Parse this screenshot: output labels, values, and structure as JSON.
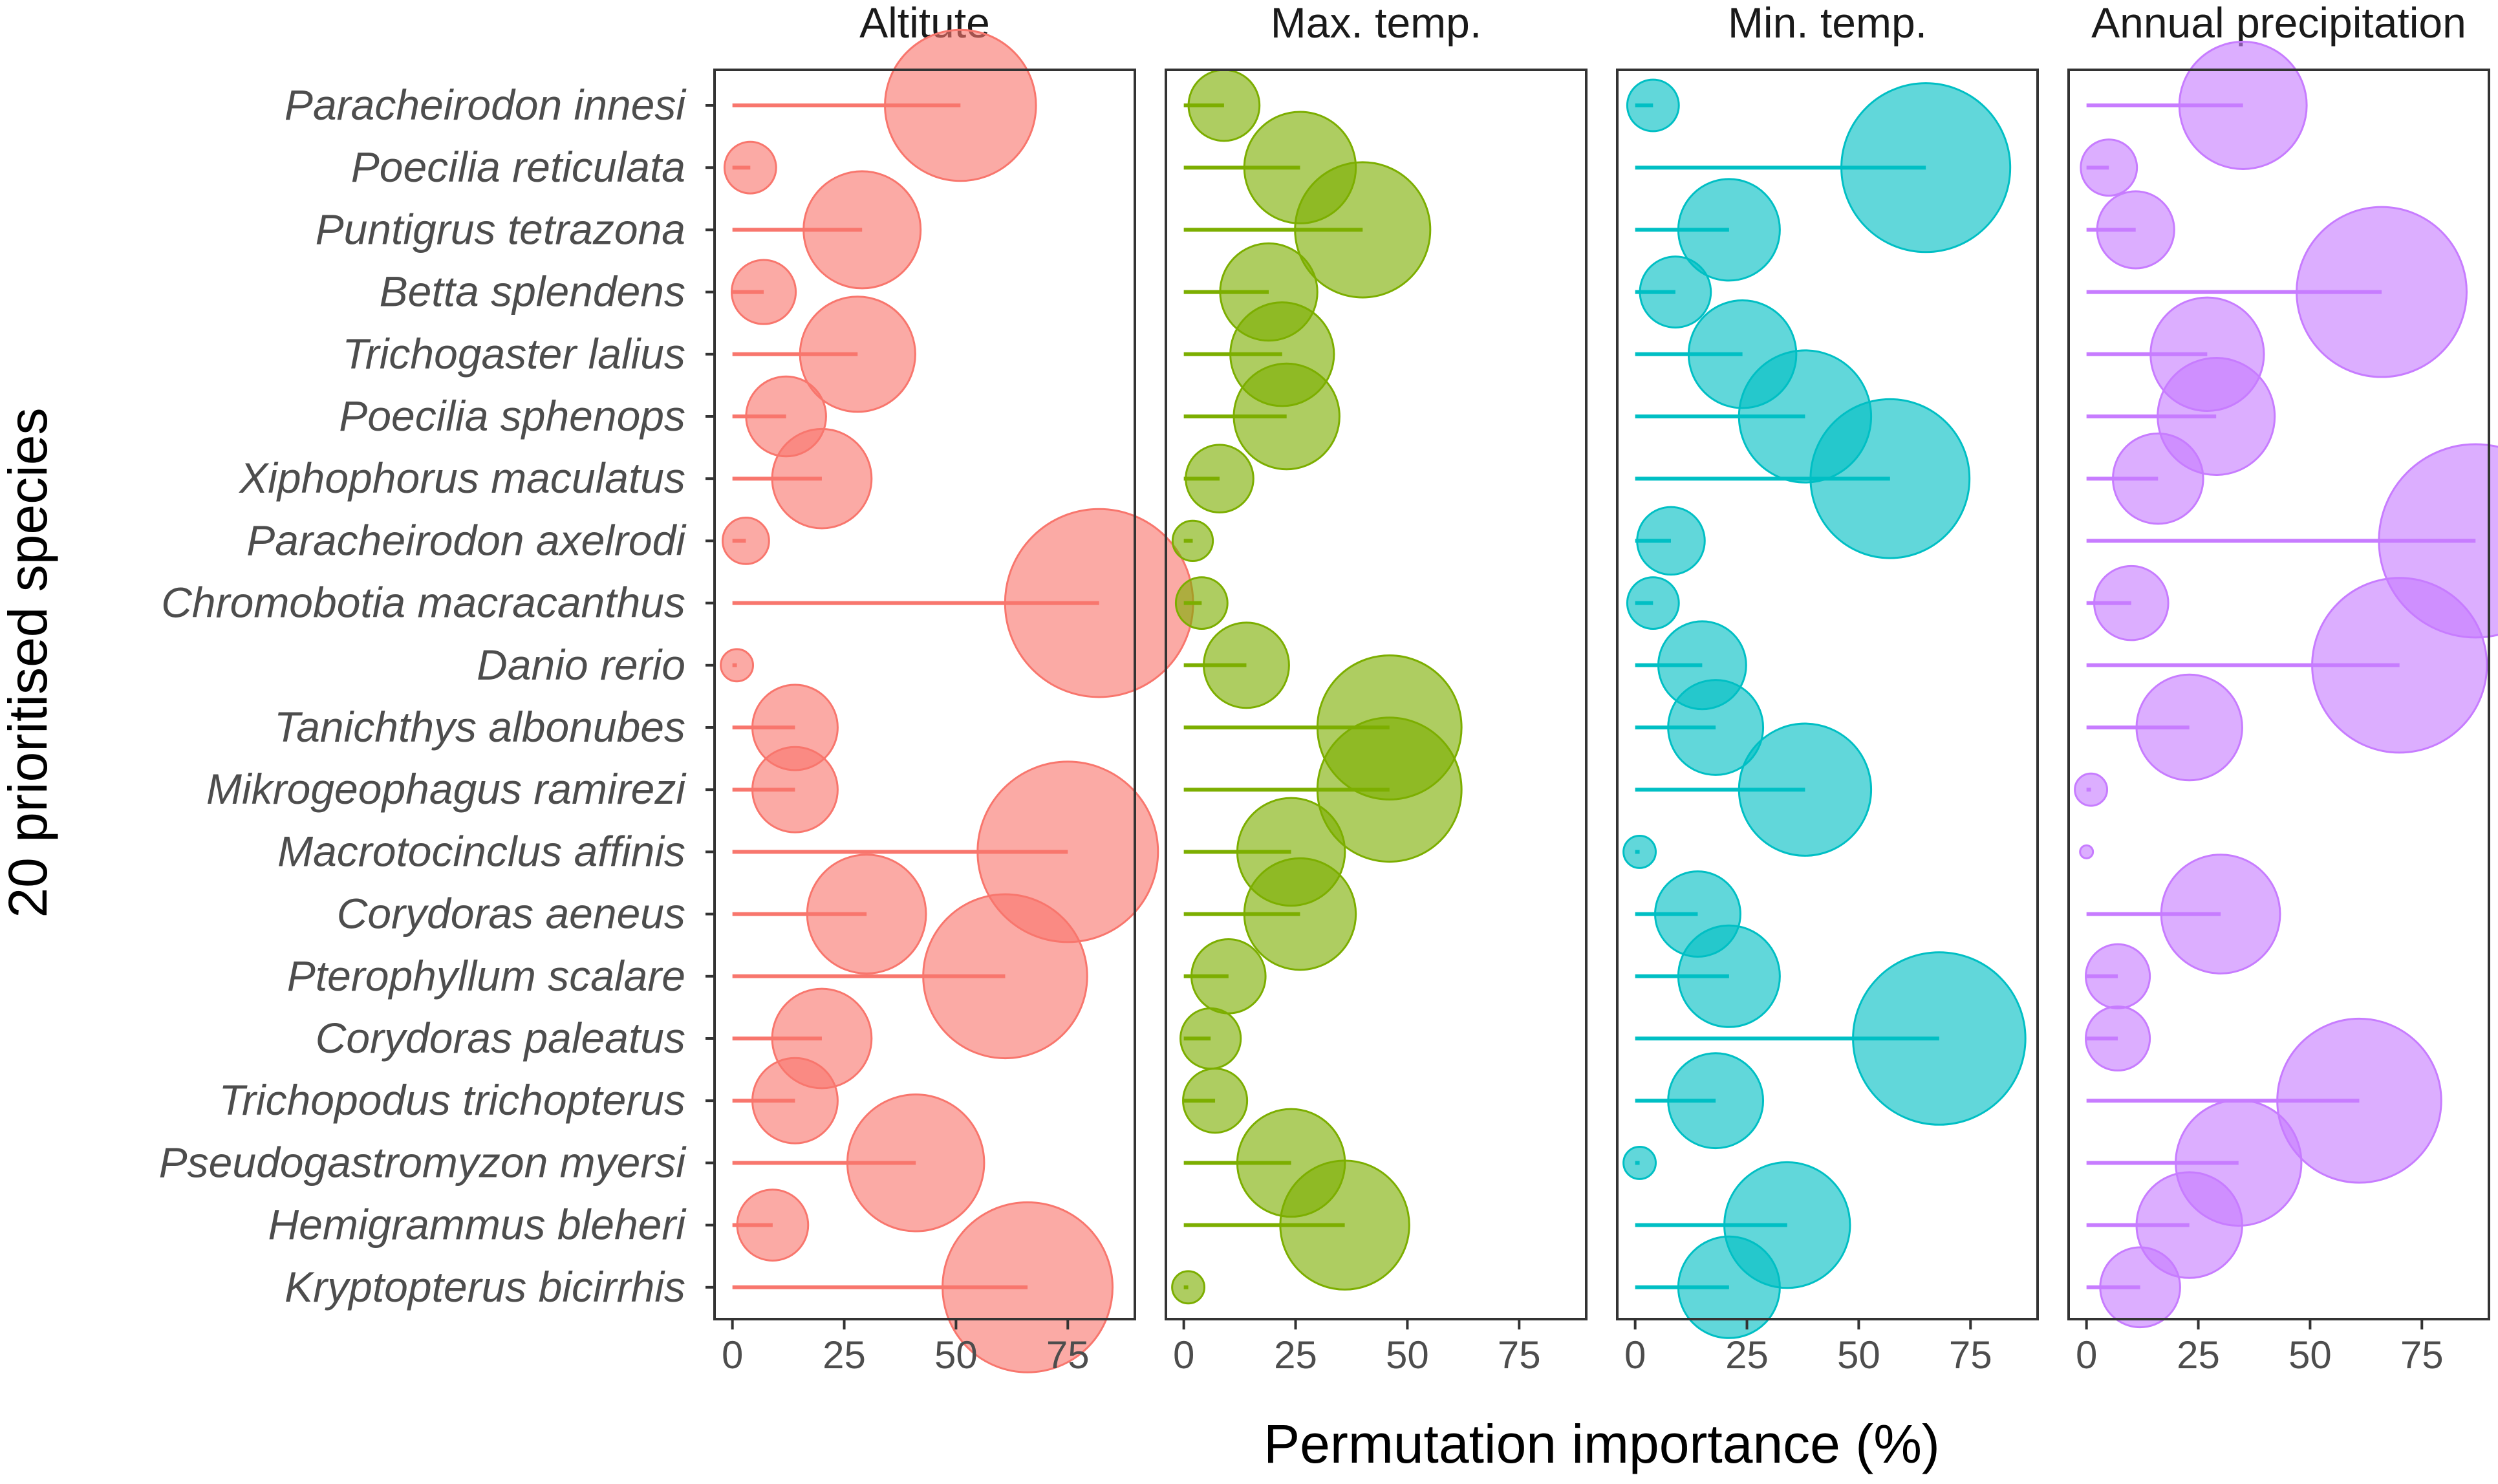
{
  "chart_data": {
    "type": "lollipop",
    "xlabel": "Permutation importance (%)",
    "ylabel": "20 prioritised species",
    "xlim": [
      -4,
      90
    ],
    "xticks": [
      0,
      25,
      50,
      75
    ],
    "xtick_labels": [
      "0",
      "25",
      "50",
      "75"
    ],
    "species": [
      "Paracheirodon innesi",
      "Poecilia reticulata",
      "Puntigrus tetrazona",
      "Betta splendens",
      "Trichogaster lalius",
      "Poecilia sphenops",
      "Xiphophorus maculatus",
      "Paracheirodon axelrodi",
      "Chromobotia macracanthus",
      "Danio rerio",
      "Tanichthys albonubes",
      "Mikrogeophagus ramirezi",
      "Macrotocinclus affinis",
      "Corydoras aeneus",
      "Pterophyllum scalare",
      "Corydoras paleatus",
      "Trichopodus trichopterus",
      "Pseudogastromyzon myersi",
      "Hemigrammus bleheri",
      "Kryptopterus bicirrhis"
    ],
    "series": [
      {
        "name": "Altitute",
        "color": "#F8766D",
        "values": [
          51,
          4,
          29,
          7,
          28,
          12,
          20,
          3,
          82,
          1,
          14,
          14,
          75,
          30,
          61,
          20,
          14,
          41,
          9,
          66
        ]
      },
      {
        "name": "Max. temp.",
        "color": "#7CAE00",
        "values": [
          9,
          26,
          40,
          19,
          22,
          23,
          8,
          2,
          4,
          14,
          46,
          46,
          24,
          26,
          10,
          6,
          7,
          24,
          36,
          1
        ]
      },
      {
        "name": "Min. temp.",
        "color": "#00BFC4",
        "values": [
          4,
          65,
          21,
          9,
          24,
          38,
          57,
          8,
          4,
          15,
          18,
          38,
          1,
          14,
          21,
          68,
          18,
          1,
          34,
          21
        ]
      },
      {
        "name": "Annual precipitation",
        "color": "#C77CFF",
        "values": [
          35,
          5,
          11,
          66,
          27,
          29,
          16,
          87,
          10,
          70,
          23,
          1,
          0,
          30,
          7,
          7,
          61,
          34,
          23,
          12
        ]
      }
    ]
  }
}
